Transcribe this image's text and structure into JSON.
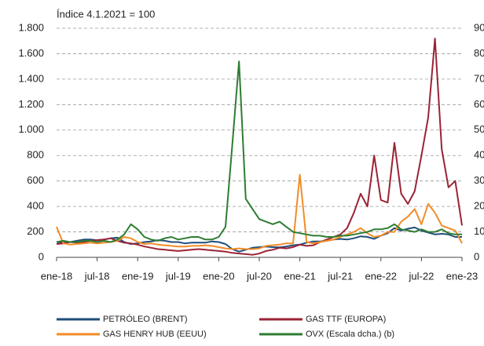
{
  "chart_data": {
    "type": "line",
    "annotation": "Índice 4.1.2021 = 100",
    "x": [
      0,
      1,
      2,
      3,
      4,
      5,
      6,
      7,
      8,
      9,
      10,
      11,
      12,
      13,
      14,
      15,
      16,
      17,
      18,
      19,
      20,
      21,
      22,
      23,
      24,
      25,
      26,
      27,
      28,
      29,
      30,
      31,
      32,
      33,
      34,
      35,
      36,
      37,
      38,
      39,
      40,
      41,
      42,
      43,
      44,
      45,
      46,
      47,
      48,
      49,
      50,
      51,
      52,
      53,
      54,
      55,
      56,
      57,
      58,
      59,
      60
    ],
    "xlim": [
      0,
      60
    ],
    "xticks": [
      {
        "value": 0,
        "label": "ene-18"
      },
      {
        "value": 6,
        "label": "jul-18"
      },
      {
        "value": 12,
        "label": "ene-19"
      },
      {
        "value": 18,
        "label": "jul-19"
      },
      {
        "value": 24,
        "label": "ene-20"
      },
      {
        "value": 30,
        "label": "jul-20"
      },
      {
        "value": 36,
        "label": "ene-21"
      },
      {
        "value": 42,
        "label": "jul-21"
      },
      {
        "value": 48,
        "label": "ene-22"
      },
      {
        "value": 54,
        "label": "jul-22"
      },
      {
        "value": 60,
        "label": "ene-23"
      }
    ],
    "ylim": [
      0,
      1800
    ],
    "yticks": [
      0,
      200,
      400,
      600,
      800,
      {
        "value": 1000,
        "label": "1.000"
      },
      {
        "value": 1200,
        "label": "1.200"
      },
      {
        "value": 1400,
        "label": "1.400"
      },
      {
        "value": 1600,
        "label": "1.600"
      },
      {
        "value": 1800,
        "label": "1.800"
      }
    ],
    "y2lim": [
      0,
      900
    ],
    "y2ticks": [
      0,
      100,
      200,
      300,
      400,
      500,
      600,
      700,
      800,
      900
    ],
    "grid": true,
    "series": [
      {
        "name": "PETRÓLEO (BRENT)",
        "color": "#1f4e79",
        "values": [
          120,
          115,
          120,
          130,
          140,
          140,
          135,
          140,
          150,
          155,
          120,
          105,
          110,
          120,
          125,
          135,
          130,
          120,
          120,
          110,
          115,
          115,
          115,
          125,
          120,
          105,
          65,
          45,
          60,
          75,
          80,
          85,
          80,
          78,
          85,
          95,
          100,
          115,
          125,
          125,
          130,
          140,
          145,
          140,
          150,
          165,
          160,
          145,
          170,
          190,
          230,
          210,
          225,
          235,
          210,
          195,
          180,
          185,
          180,
          160,
          160
        ]
      },
      {
        "name": "GAS TTF (EUROPA)",
        "color": "#9b2335",
        "values": [
          105,
          110,
          120,
          115,
          120,
          130,
          135,
          140,
          150,
          130,
          115,
          110,
          100,
          85,
          75,
          65,
          60,
          55,
          50,
          55,
          60,
          65,
          60,
          55,
          50,
          45,
          35,
          30,
          25,
          20,
          30,
          50,
          60,
          75,
          70,
          80,
          100,
          90,
          95,
          120,
          140,
          160,
          180,
          230,
          350,
          500,
          400,
          800,
          450,
          430,
          900,
          500,
          420,
          520,
          800,
          1100,
          1720,
          850,
          550,
          600,
          250
        ]
      },
      {
        "name": "GAS HENRY HUB (EEUU)",
        "color": "#f28c28",
        "values": [
          240,
          110,
          100,
          105,
          110,
          115,
          110,
          115,
          120,
          130,
          160,
          150,
          120,
          105,
          110,
          100,
          95,
          90,
          85,
          85,
          90,
          90,
          95,
          90,
          80,
          70,
          65,
          70,
          65,
          65,
          70,
          90,
          95,
          100,
          110,
          110,
          650,
          120,
          110,
          120,
          130,
          140,
          160,
          180,
          200,
          230,
          190,
          160,
          170,
          200,
          200,
          280,
          320,
          380,
          260,
          420,
          350,
          250,
          230,
          210,
          110
        ]
      },
      {
        "name": "OVX (Escala dcha.) (b)",
        "color": "#2e7d32",
        "axis": "y2",
        "values": [
          60,
          65,
          60,
          60,
          65,
          65,
          60,
          65,
          60,
          70,
          90,
          130,
          110,
          80,
          70,
          65,
          75,
          80,
          70,
          75,
          80,
          80,
          70,
          70,
          80,
          120,
          440,
          770,
          230,
          190,
          150,
          140,
          130,
          140,
          120,
          100,
          95,
          90,
          85,
          85,
          80,
          80,
          85,
          85,
          90,
          95,
          100,
          110,
          110,
          115,
          130,
          110,
          105,
          100,
          110,
          100,
          100,
          110,
          95,
          90,
          90
        ]
      }
    ]
  }
}
